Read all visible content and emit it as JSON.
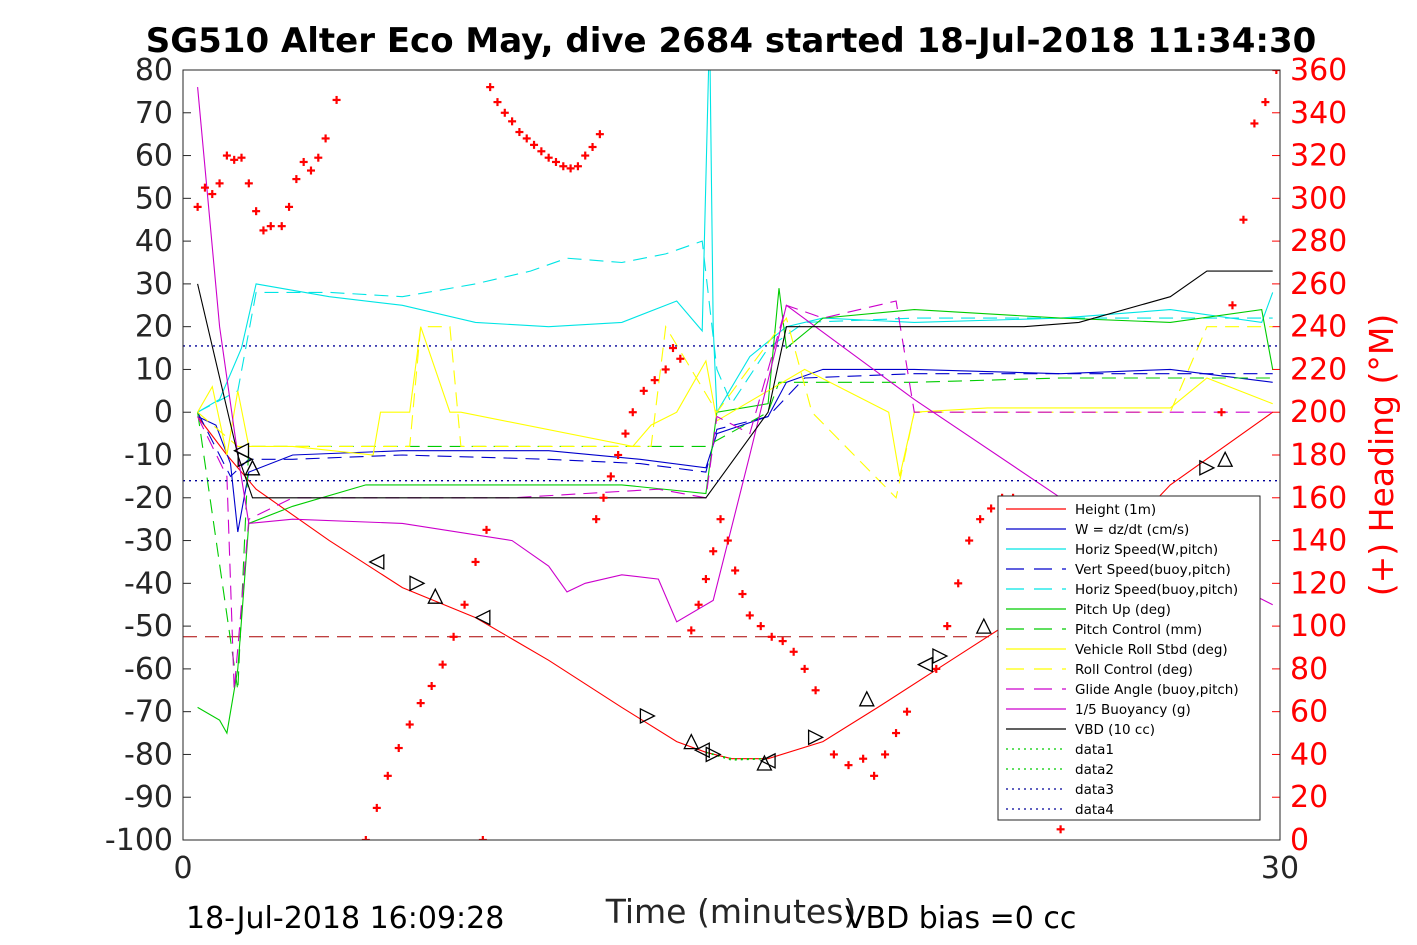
{
  "chart_data": {
    "type": "line",
    "title": "SG510 Alter Eco May, dive 2684 started 18-Jul-2018 11:34:30",
    "xlabel": "Time (minutes)",
    "ylabel": "",
    "ylabel_right": "(+) Heading (°M)",
    "xlim": [
      0,
      30
    ],
    "ylim": [
      -100,
      80
    ],
    "ylim_right": [
      0,
      360
    ],
    "x_ticks": [
      0,
      30
    ],
    "y_ticks": [
      80,
      70,
      60,
      50,
      40,
      30,
      20,
      10,
      0,
      -10,
      -20,
      -30,
      -40,
      -50,
      -60,
      -70,
      -80,
      -90,
      -100
    ],
    "y_ticks_right": [
      360,
      340,
      320,
      300,
      280,
      260,
      240,
      220,
      200,
      180,
      160,
      140,
      120,
      100,
      80,
      60,
      40,
      20,
      0
    ],
    "footer_left": "18-Jul-2018 16:09:28",
    "footer_right": "VBD bias =0 cc",
    "legend_position": "lower-right",
    "series": [
      {
        "name": "Height (1m)",
        "color": "#ff0000",
        "style": "solid",
        "x": [
          0.4,
          1.2,
          2.0,
          4.0,
          6.0,
          8.0,
          10.0,
          12.0,
          13.5,
          14.3,
          15.0,
          16.0,
          17.5,
          19.0,
          21.0,
          23.0,
          25.0,
          27.0,
          29.8
        ],
        "y": [
          -1,
          -10,
          -18,
          -30,
          -41,
          -48,
          -58,
          -69,
          -77,
          -79.5,
          -81,
          -81,
          -77,
          -69,
          -58,
          -47,
          -35,
          -17,
          0
        ]
      },
      {
        "name": "W = dz/dt (cm/s)",
        "color": "#0000cc",
        "style": "solid",
        "x": [
          0.4,
          0.9,
          1.3,
          1.5,
          1.8,
          3.0,
          6.0,
          10.0,
          12.5,
          14.3,
          14.6,
          16.0,
          16.5,
          17.5,
          20.0,
          24.0,
          27.0,
          29.8
        ],
        "y": [
          -1,
          -3,
          -12,
          -28,
          -14,
          -10,
          -9,
          -9,
          -11,
          -13,
          -5,
          -1,
          7,
          10,
          10,
          9,
          10,
          7
        ]
      },
      {
        "name": "Horiz Speed(W,pitch)",
        "color": "#00e5e5",
        "style": "solid",
        "x": [
          0.4,
          1.0,
          1.6,
          2.0,
          4.0,
          6.0,
          8.0,
          10.0,
          12.0,
          13.5,
          14.2,
          14.4,
          14.5,
          14.6,
          15.5,
          16.5,
          17.5,
          20.0,
          24.0,
          27.0,
          29.5,
          29.8
        ],
        "y": [
          0,
          3,
          15,
          30,
          27,
          25,
          21,
          20,
          21,
          26,
          19,
          90,
          20,
          0,
          13,
          20,
          22,
          21,
          22,
          24,
          21,
          28
        ]
      },
      {
        "name": "Vert Speed(buoy,pitch)",
        "color": "#0000cc",
        "style": "dashed",
        "x": [
          0.4,
          1.3,
          1.8,
          3.0,
          6.0,
          10.0,
          12.5,
          14.3,
          14.6,
          16.0,
          17.0,
          20.0,
          24.0,
          29.8
        ],
        "y": [
          0,
          -15,
          -11,
          -11,
          -10,
          -11,
          -12,
          -14,
          -4,
          -1,
          8,
          9,
          9,
          9
        ]
      },
      {
        "name": "Horiz Speed(buoy,pitch)",
        "color": "#00e5e5",
        "style": "dashed",
        "x": [
          0.4,
          1.5,
          2.0,
          4.0,
          6.0,
          8.0,
          9.5,
          10.5,
          12.0,
          13.2,
          14.2,
          14.6,
          15.0,
          16.0,
          17.0,
          20.0,
          24.0,
          29.8
        ],
        "y": [
          0,
          5,
          28,
          28,
          27,
          30,
          33,
          36,
          35,
          37,
          40,
          10,
          2,
          15,
          21,
          22,
          22,
          22
        ]
      },
      {
        "name": "Pitch Up (deg)",
        "color": "#00cc00",
        "style": "solid",
        "x": [
          0.4,
          1.0,
          1.2,
          1.5,
          1.8,
          3.0,
          5.0,
          8.0,
          12.0,
          14.3,
          14.6,
          16.0,
          16.3,
          16.5,
          17.5,
          20.0,
          24.0,
          27.0,
          29.5,
          29.8
        ],
        "y": [
          -69,
          -72,
          -75,
          -60,
          -26,
          -22,
          -17,
          -17,
          -17,
          -19,
          0,
          2,
          29,
          15,
          22,
          24,
          22,
          21,
          24,
          10
        ]
      },
      {
        "name": "Pitch Control (mm)",
        "color": "#00cc00",
        "style": "dashed",
        "x": [
          0.4,
          1.5,
          1.8,
          6.0,
          12.0,
          14.3,
          16.0,
          16.3,
          20.0,
          24.0,
          29.8
        ],
        "y": [
          0,
          -65,
          -8,
          -8,
          -8,
          -8,
          0,
          7,
          7,
          8,
          8
        ]
      },
      {
        "name": "Vehicle Roll Stbd (deg)",
        "color": "#ffff00",
        "style": "solid",
        "x": [
          0.4,
          0.8,
          1.2,
          1.5,
          1.8,
          3.0,
          5.2,
          5.4,
          6.2,
          6.5,
          7.3,
          7.6,
          12.3,
          12.8,
          13.5,
          14.3,
          14.6,
          16.0,
          17.0,
          19.3,
          19.6,
          20.0,
          22.0,
          24.0,
          27.0,
          28.0,
          29.8
        ],
        "y": [
          0,
          6,
          -10,
          5,
          -8,
          -8,
          -10,
          0,
          0,
          20,
          0,
          0,
          -8,
          -3,
          0,
          12,
          -2,
          5,
          10,
          0,
          -15,
          0,
          1,
          1,
          1,
          8,
          2
        ]
      },
      {
        "name": "Roll Control (deg)",
        "color": "#ffff00",
        "style": "dashed",
        "x": [
          0.4,
          1.5,
          1.8,
          6.2,
          6.5,
          7.3,
          7.6,
          12.8,
          13.2,
          14.6,
          16.5,
          17.2,
          19.5,
          20.0,
          24.0,
          27.0,
          28.0,
          29.8
        ],
        "y": [
          0,
          -8,
          -8,
          -8,
          20,
          20,
          -8,
          -8,
          20,
          0,
          22,
          0,
          -20,
          0,
          0,
          0,
          20,
          20
        ]
      },
      {
        "name": "Glide Angle (buoy,pitch)",
        "color": "#cc00cc",
        "style": "dashed",
        "x": [
          0.4,
          1.2,
          1.4,
          1.8,
          3.0,
          6.0,
          9.0,
          13.0,
          14.3,
          14.6,
          15.5,
          16.5,
          17.5,
          19.5,
          20.0,
          24.0,
          29.8
        ],
        "y": [
          -1,
          -15,
          -65,
          -25,
          -20,
          -20,
          -20,
          -18,
          -20,
          -1,
          -5,
          25,
          22,
          26,
          0,
          0,
          0
        ]
      },
      {
        "name": "1/5 Buoyancy (g)",
        "color": "#cc00cc",
        "style": "solid",
        "x": [
          0.4,
          1.0,
          1.5,
          1.8,
          3.0,
          6.0,
          9.0,
          10.0,
          10.5,
          11.0,
          12.0,
          13.0,
          13.5,
          14.5,
          15.5,
          16.5,
          20.0,
          24.0,
          29.8
        ],
        "y": [
          76,
          20,
          -10,
          -26,
          -25,
          -26,
          -30,
          -36,
          -42,
          -40,
          -38,
          -39,
          -49,
          -44,
          -10,
          25,
          3,
          -20,
          -45
        ]
      },
      {
        "name": "VBD (10 cc)",
        "color": "#000000",
        "style": "solid",
        "x": [
          0.4,
          1.5,
          1.9,
          5.0,
          10.0,
          14.3,
          16.0,
          16.5,
          18.0,
          23.0,
          24.5,
          27.0,
          28.0,
          29.8
        ],
        "y": [
          30,
          -10,
          -20,
          -20,
          -20,
          -20,
          0,
          20,
          20,
          20,
          21,
          27,
          33,
          33
        ]
      },
      {
        "name": "data1",
        "color": "#00cc00",
        "style": "dotted",
        "x": [
          14.3,
          15.0,
          16.0
        ],
        "y": [
          -79.5,
          -81,
          -81
        ]
      },
      {
        "name": "data2",
        "color": "#00cc00",
        "style": "dotted",
        "x": [
          14.3,
          15.0,
          16.0
        ],
        "y": [
          -79.5,
          -81.3,
          -81
        ]
      },
      {
        "name": "data3",
        "color": "#000099",
        "style": "dotted",
        "x": [
          0,
          30
        ],
        "y": [
          15.5,
          15.5
        ]
      },
      {
        "name": "data4",
        "color": "#000099",
        "style": "dotted",
        "x": [
          0,
          30
        ],
        "y": [
          -16,
          -16
        ]
      }
    ],
    "ref_lines": [
      {
        "color": "#aa0000",
        "style": "dashed",
        "y": -52.5,
        "x": [
          0,
          22.5
        ]
      }
    ],
    "triangle_markers": [
      {
        "x": 1.6,
        "y": -9
      },
      {
        "x": 1.7,
        "y": -11
      },
      {
        "x": 1.9,
        "y": -13
      },
      {
        "x": 5.3,
        "y": -35
      },
      {
        "x": 6.4,
        "y": -40
      },
      {
        "x": 6.9,
        "y": -43
      },
      {
        "x": 8.2,
        "y": -48
      },
      {
        "x": 12.7,
        "y": -71
      },
      {
        "x": 13.9,
        "y": -77
      },
      {
        "x": 14.2,
        "y": -79
      },
      {
        "x": 14.5,
        "y": -80
      },
      {
        "x": 15.9,
        "y": -82
      },
      {
        "x": 16.0,
        "y": -81.5
      },
      {
        "x": 17.3,
        "y": -76
      },
      {
        "x": 18.7,
        "y": -67
      },
      {
        "x": 20.3,
        "y": -59
      },
      {
        "x": 20.7,
        "y": -57
      },
      {
        "x": 21.9,
        "y": -50
      },
      {
        "x": 22.6,
        "y": -45
      },
      {
        "x": 28.0,
        "y": -13
      },
      {
        "x": 28.5,
        "y": -11
      }
    ],
    "heading_points": {
      "x": [
        0.4,
        0.6,
        0.8,
        1.0,
        1.2,
        1.4,
        1.6,
        1.8,
        2.0,
        2.2,
        2.4,
        2.7,
        2.9,
        3.1,
        3.3,
        3.5,
        3.7,
        3.9,
        4.2,
        5.0,
        5.3,
        5.6,
        5.9,
        6.2,
        6.5,
        6.8,
        7.1,
        7.4,
        7.7,
        8.0,
        8.3,
        8.2,
        8.4,
        8.6,
        8.8,
        9.0,
        9.2,
        9.4,
        9.6,
        9.8,
        10.0,
        10.2,
        10.4,
        10.6,
        10.8,
        11.0,
        11.2,
        11.4,
        11.3,
        11.5,
        11.7,
        11.9,
        12.1,
        12.3,
        12.6,
        12.9,
        13.2,
        13.4,
        13.6,
        13.9,
        14.1,
        14.3,
        14.5,
        14.7,
        14.9,
        15.1,
        15.3,
        15.5,
        15.8,
        16.1,
        16.4,
        16.7,
        17.0,
        17.3,
        17.8,
        18.2,
        18.6,
        18.9,
        19.2,
        19.5,
        19.8,
        20.6,
        20.9,
        21.2,
        21.5,
        21.8,
        22.1,
        22.4,
        22.7,
        23.0,
        23.3,
        24.0,
        24.3,
        24.6,
        24.9,
        25.2,
        25.5,
        25.8,
        26.1,
        26.4,
        27.8,
        28.1,
        28.4,
        28.7,
        29.0,
        29.3,
        29.6,
        29.9
      ],
      "y": [
        296,
        305,
        302,
        307,
        320,
        318,
        319,
        307,
        294,
        285,
        287,
        287,
        296,
        309,
        317,
        313,
        319,
        328,
        346,
        0,
        15,
        30,
        43,
        54,
        64,
        72,
        82,
        95,
        110,
        130,
        145,
        0,
        352,
        345,
        340,
        336,
        331,
        328,
        325,
        322,
        319,
        317,
        315,
        314,
        315,
        320,
        324,
        330,
        150,
        160,
        170,
        180,
        190,
        200,
        210,
        215,
        220,
        230,
        225,
        98,
        110,
        122,
        135,
        150,
        140,
        126,
        115,
        105,
        100,
        95,
        93,
        88,
        80,
        70,
        40,
        35,
        38,
        30,
        40,
        50,
        60,
        80,
        100,
        120,
        140,
        150,
        155,
        160,
        160,
        158,
        150,
        5,
        25,
        35,
        45,
        55,
        70,
        85,
        100,
        115,
        100,
        130,
        200,
        250,
        290,
        335,
        345,
        360
      ]
    }
  }
}
